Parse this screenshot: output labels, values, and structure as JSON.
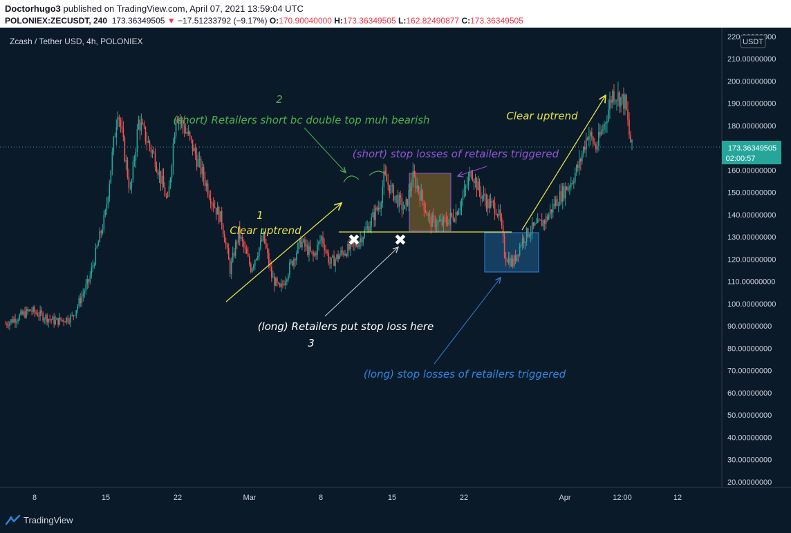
{
  "header": {
    "author": "Doctorhugo3",
    "published": "published on TradingView.com, April 07, 2021 13:59:04 UTC",
    "symbol": "POLONIEX:ZECUSDT, 240",
    "last": "173.36349505",
    "change": "−17.51233792 (−9.17%)",
    "o_label": "O:",
    "o_value": "170.90040000",
    "h_label": "H:",
    "h_value": "173.36349505",
    "l_label": "L:",
    "l_value": "162.82490877",
    "c_label": "C:",
    "c_value": "173.36349505"
  },
  "chart_data": {
    "type": "candlestick",
    "title": "Zcash / Tether USD, 4h, POLONIEX",
    "currency_badge": "USDT",
    "ylim": [
      17.5,
      224
    ],
    "yticks": [
      20,
      30,
      40,
      50,
      60,
      70,
      80,
      90,
      100,
      110,
      120,
      130,
      140,
      150,
      160,
      170,
      180,
      190,
      200,
      210,
      220
    ],
    "ytick_labels": [
      "20.00000000",
      "30.00000000",
      "40.00000000",
      "50.00000000",
      "60.00000000",
      "70.00000000",
      "80.00000000",
      "90.00000000",
      "100.00000000",
      "110.00000000",
      "120.00000000",
      "130.00000000",
      "140.00000000",
      "150.00000000",
      "160.00000000",
      "170.00000000",
      "180.00000000",
      "190.00000000",
      "200.00000000",
      "210.00000000",
      "220.00000000"
    ],
    "xticks": [
      "8",
      "15",
      "22",
      "Mar",
      "8",
      "15",
      "22",
      "Apr",
      "12:00",
      "12"
    ],
    "last_price_label": "173.36349505",
    "countdown_label": "02:00:57",
    "colors": {
      "up": "#26a69a",
      "down": "#ef5350",
      "yellow": "#e5e04a",
      "green": "#4caf50",
      "purple": "#8e57d9",
      "white": "#ffffff",
      "blue": "#2e86de"
    },
    "price_path": [
      [
        8,
        91
      ],
      [
        11,
        97
      ],
      [
        14,
        92
      ],
      [
        16,
        94
      ],
      [
        18,
        110
      ],
      [
        20,
        140
      ],
      [
        21.5,
        188
      ],
      [
        23,
        150
      ],
      [
        24,
        182
      ],
      [
        26,
        165
      ],
      [
        27.5,
        145
      ],
      [
        28.5,
        186
      ],
      [
        30,
        175
      ],
      [
        31.5,
        160
      ],
      [
        33,
        145
      ],
      [
        34,
        137
      ],
      [
        35,
        115
      ],
      [
        36,
        132
      ],
      [
        37.5,
        116
      ],
      [
        39,
        130
      ],
      [
        40,
        112
      ],
      [
        41,
        106
      ],
      [
        42,
        115
      ],
      [
        43.5,
        128
      ],
      [
        45,
        121
      ],
      [
        46,
        130
      ],
      [
        47,
        118
      ],
      [
        48.5,
        123
      ],
      [
        50,
        126
      ],
      [
        51.5,
        134
      ],
      [
        53,
        145
      ],
      [
        53.5,
        157
      ],
      [
        54.5,
        150
      ],
      [
        56,
        142
      ],
      [
        57,
        157
      ],
      [
        58,
        148
      ],
      [
        59,
        137
      ],
      [
        60.5,
        136
      ],
      [
        62,
        140
      ],
      [
        63,
        148
      ],
      [
        64,
        160
      ],
      [
        65,
        150
      ],
      [
        66,
        145
      ],
      [
        67,
        143
      ],
      [
        67.5,
        137
      ],
      [
        68,
        122
      ],
      [
        69,
        118
      ],
      [
        70,
        128
      ],
      [
        71,
        133
      ],
      [
        72,
        135
      ],
      [
        73,
        138
      ],
      [
        74,
        145
      ],
      [
        75,
        150
      ],
      [
        76,
        155
      ],
      [
        77,
        163
      ],
      [
        78,
        177
      ],
      [
        79,
        170
      ],
      [
        80,
        181
      ],
      [
        81,
        195
      ],
      [
        82,
        192
      ],
      [
        82.5,
        190
      ],
      [
        83,
        175
      ],
      [
        83.3,
        170
      ]
    ],
    "annotations": [
      {
        "text": "1",
        "color": "yellow"
      },
      {
        "text": "Clear uptrend",
        "color": "yellow"
      },
      {
        "text": "2",
        "color": "green"
      },
      {
        "text": "(short) Retailers short bc double top muh bearish",
        "color": "green"
      },
      {
        "text": "(short) stop losses of retailers triggered",
        "color": "purple"
      },
      {
        "text": "Clear uptrend",
        "color": "yellow"
      },
      {
        "text": "(long) Retailers put stop loss here",
        "color": "white"
      },
      {
        "text": "3",
        "color": "white"
      },
      {
        "text": "(long) stop losses of retailers triggered",
        "color": "blue"
      }
    ]
  },
  "footer": {
    "brand": "TradingView"
  }
}
